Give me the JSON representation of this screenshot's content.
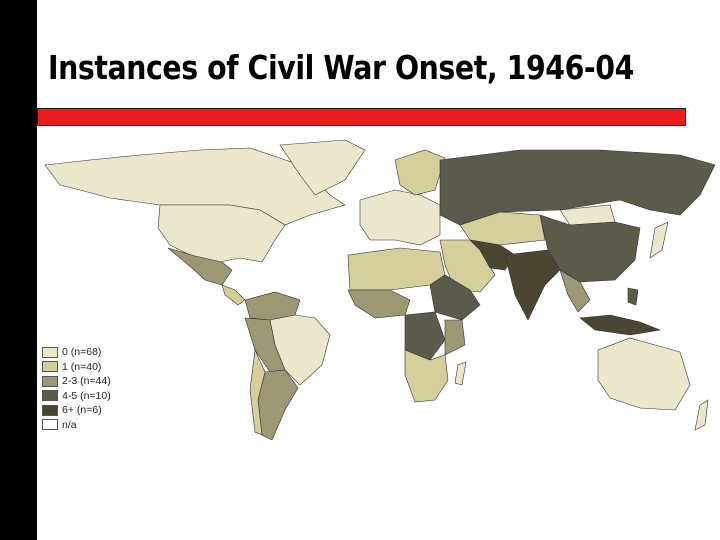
{
  "title": "Instances of Civil War Onset, 1946-04",
  "legend": [
    {
      "label": "0 (n=68)",
      "color": "#ebe7cb"
    },
    {
      "label": "1 (n=40)",
      "color": "#d5cf9c"
    },
    {
      "label": "2-3 (n=44)",
      "color": "#9c9873"
    },
    {
      "label": "4-5 (n=10)",
      "color": "#5b5a4b"
    },
    {
      "label": "6+ (n=6)",
      "color": "#4a4632"
    },
    {
      "label": "n/a",
      "color": "#ffffff"
    }
  ]
}
